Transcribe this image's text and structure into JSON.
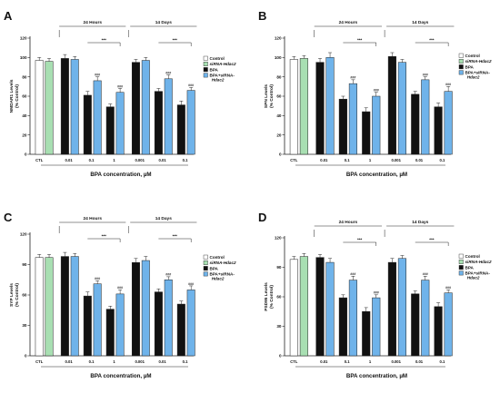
{
  "figure": {
    "style": {
      "colors": {
        "Control": "#ffffff",
        "siRNA-Hdac2": "#a8dfb2",
        "BPA": "#111111",
        "BPA+siRNA-Hdac2": "#6fb3ea"
      },
      "axis_color": "#222222"
    }
  },
  "chart_data": [
    {
      "type": "bar",
      "panel_label": "A",
      "ylabel_lines": [
        "NMDAR1 Levels",
        "(% Control)"
      ],
      "ylim": [
        0,
        120
      ],
      "yticks": [
        "0",
        "20",
        "40",
        "60",
        "80",
        "100",
        "120"
      ],
      "group_headers": [
        "24 Hours",
        "14 Days"
      ],
      "xlabel": "BPA concentration, µM",
      "legend_entries": [
        "Control",
        "siRNA-Hdac2",
        "BPA",
        "BPA+siRNA-Hdac2"
      ],
      "legend_labels": [
        "Control",
        "siRNA-Hdac2",
        "BPA",
        "BPA+siRNA-",
        "Hdac2"
      ],
      "significance": [
        "***",
        "***"
      ],
      "bars": [
        {
          "series": "Control",
          "label": "CTL",
          "value": 97,
          "error": 3,
          "sig": ""
        },
        {
          "series": "siRNA-Hdac2",
          "label": "",
          "value": 96,
          "error": 3,
          "sig": ""
        },
        {
          "series": "BPA",
          "label": "0.01",
          "value": 99,
          "error": 4,
          "sig": ""
        },
        {
          "series": "BPA+siRNA-Hdac2",
          "label": "",
          "value": 98,
          "error": 3,
          "sig": ""
        },
        {
          "series": "BPA",
          "label": "0.1",
          "value": 61,
          "error": 4,
          "sig": ""
        },
        {
          "series": "BPA+siRNA-Hdac2",
          "label": "",
          "value": 76,
          "error": 4,
          "sig": "###"
        },
        {
          "series": "BPA",
          "label": "1",
          "value": 49,
          "error": 3,
          "sig": ""
        },
        {
          "series": "BPA+siRNA-Hdac2",
          "label": "",
          "value": 64,
          "error": 4,
          "sig": "###"
        },
        {
          "series": "BPA",
          "label": "0.001",
          "value": 95,
          "error": 3,
          "sig": ""
        },
        {
          "series": "BPA+siRNA-Hdac2",
          "label": "",
          "value": 97,
          "error": 3,
          "sig": ""
        },
        {
          "series": "BPA",
          "label": "0.01",
          "value": 65,
          "error": 3,
          "sig": ""
        },
        {
          "series": "BPA+siRNA-Hdac2",
          "label": "",
          "value": 78,
          "error": 4,
          "sig": "###"
        },
        {
          "series": "BPA",
          "label": "0.1",
          "value": 51,
          "error": 4,
          "sig": ""
        },
        {
          "series": "BPA+siRNA-Hdac2",
          "label": "",
          "value": 66,
          "error": 3,
          "sig": "###"
        }
      ]
    },
    {
      "type": "bar",
      "panel_label": "B",
      "ylabel_lines": [
        "SPN Levels",
        "(% Control)"
      ],
      "ylim": [
        0,
        120
      ],
      "yticks": [
        "0",
        "20",
        "40",
        "60",
        "80",
        "100",
        "120"
      ],
      "group_headers": [
        "24 Hours",
        "14 Days"
      ],
      "xlabel": "BPA concentration, µM",
      "legend_entries": [
        "Control",
        "siRNA-Hdac2",
        "BPA",
        "BPA+siRNA-Hdac2"
      ],
      "legend_labels": [
        "Control",
        "siRNA-Hdac2",
        "BPA",
        "BPA+siRNA-",
        "Hdac2"
      ],
      "significance": [
        "***",
        "***"
      ],
      "bars": [
        {
          "series": "Control",
          "label": "CTL",
          "value": 98,
          "error": 3,
          "sig": ""
        },
        {
          "series": "siRNA-Hdac2",
          "label": "",
          "value": 99,
          "error": 3,
          "sig": ""
        },
        {
          "series": "BPA",
          "label": "0.01",
          "value": 95,
          "error": 4,
          "sig": ""
        },
        {
          "series": "BPA+siRNA-Hdac2",
          "label": "",
          "value": 100,
          "error": 5,
          "sig": ""
        },
        {
          "series": "BPA",
          "label": "0.1",
          "value": 57,
          "error": 3,
          "sig": ""
        },
        {
          "series": "BPA+siRNA-Hdac2",
          "label": "",
          "value": 73,
          "error": 4,
          "sig": "###"
        },
        {
          "series": "BPA",
          "label": "1",
          "value": 44,
          "error": 4,
          "sig": ""
        },
        {
          "series": "BPA+siRNA-Hdac2",
          "label": "",
          "value": 60,
          "error": 4,
          "sig": "###"
        },
        {
          "series": "BPA",
          "label": "0.001",
          "value": 101,
          "error": 4,
          "sig": ""
        },
        {
          "series": "BPA+siRNA-Hdac2",
          "label": "",
          "value": 95,
          "error": 3,
          "sig": ""
        },
        {
          "series": "BPA",
          "label": "0.01",
          "value": 62,
          "error": 3,
          "sig": ""
        },
        {
          "series": "BPA+siRNA-Hdac2",
          "label": "",
          "value": 77,
          "error": 3,
          "sig": "###"
        },
        {
          "series": "BPA",
          "label": "0.1",
          "value": 49,
          "error": 4,
          "sig": ""
        },
        {
          "series": "BPA+siRNA-Hdac2",
          "label": "",
          "value": 65,
          "error": 5,
          "sig": "###"
        }
      ]
    },
    {
      "type": "bar",
      "panel_label": "C",
      "ylabel_lines": [
        "SYP Levels",
        "(% Control)"
      ],
      "ylim": [
        0,
        120
      ],
      "yticks": [
        "0",
        "30",
        "60",
        "90",
        "120"
      ],
      "group_headers": [
        "24 Hours",
        "14 Days"
      ],
      "xlabel": "BPA concentration, µM",
      "legend_entries": [
        "Control",
        "siRNA-Hdac2",
        "BPA",
        "BPA+siRNA-Hdac2"
      ],
      "legend_labels": [
        "Control",
        "siRNA-Hdac2",
        "BPA",
        "BPA+siRNA-",
        "Hdac2"
      ],
      "significance": [
        "***",
        "***"
      ],
      "bars": [
        {
          "series": "Control",
          "label": "CTL",
          "value": 97,
          "error": 3,
          "sig": ""
        },
        {
          "series": "siRNA-Hdac2",
          "label": "",
          "value": 97,
          "error": 3,
          "sig": ""
        },
        {
          "series": "BPA",
          "label": "0.01",
          "value": 98,
          "error": 4,
          "sig": ""
        },
        {
          "series": "BPA+siRNA-Hdac2",
          "label": "",
          "value": 98,
          "error": 3,
          "sig": ""
        },
        {
          "series": "BPA",
          "label": "0.1",
          "value": 59,
          "error": 4,
          "sig": ""
        },
        {
          "series": "BPA+siRNA-Hdac2",
          "label": "",
          "value": 71,
          "error": 3,
          "sig": "###"
        },
        {
          "series": "BPA",
          "label": "1",
          "value": 46,
          "error": 3,
          "sig": ""
        },
        {
          "series": "BPA+siRNA-Hdac2",
          "label": "",
          "value": 61,
          "error": 4,
          "sig": "###"
        },
        {
          "series": "BPA",
          "label": "0.001",
          "value": 92,
          "error": 4,
          "sig": ""
        },
        {
          "series": "BPA+siRNA-Hdac2",
          "label": "",
          "value": 94,
          "error": 4,
          "sig": ""
        },
        {
          "series": "BPA",
          "label": "0.01",
          "value": 63,
          "error": 3,
          "sig": ""
        },
        {
          "series": "BPA+siRNA-Hdac2",
          "label": "",
          "value": 75,
          "error": 3,
          "sig": "###"
        },
        {
          "series": "BPA",
          "label": "0.1",
          "value": 51,
          "error": 3,
          "sig": ""
        },
        {
          "series": "BPA+siRNA-Hdac2",
          "label": "",
          "value": 65,
          "error": 4,
          "sig": "###"
        }
      ]
    },
    {
      "type": "bar",
      "panel_label": "D",
      "ylabel_lines": [
        "PSD95 Levels",
        "(% Control)"
      ],
      "ylim": [
        0,
        120
      ],
      "yticks": [
        "0",
        "30",
        "60",
        "90",
        "120"
      ],
      "group_headers": [
        "24 Hours",
        "14 Days"
      ],
      "xlabel": "BPA concentration, µM",
      "legend_entries": [
        "Control",
        "siRNA-Hdac2",
        "BPA",
        "BPA+siRNA-Hdac2"
      ],
      "legend_labels": [
        "Control",
        "siRNA-Hdac2",
        "BPA",
        "BPA+siRNA-",
        "Hdac2"
      ],
      "significance": [
        "***",
        "***"
      ],
      "bars": [
        {
          "series": "Control",
          "label": "CTL",
          "value": 98,
          "error": 3,
          "sig": ""
        },
        {
          "series": "siRNA-Hdac2",
          "label": "",
          "value": 101,
          "error": 3,
          "sig": ""
        },
        {
          "series": "BPA",
          "label": "0.01",
          "value": 100,
          "error": 3,
          "sig": ""
        },
        {
          "series": "BPA+siRNA-Hdac2",
          "label": "",
          "value": 95,
          "error": 4,
          "sig": ""
        },
        {
          "series": "BPA",
          "label": "0.1",
          "value": 59,
          "error": 3,
          "sig": ""
        },
        {
          "series": "BPA+siRNA-Hdac2",
          "label": "",
          "value": 77,
          "error": 4,
          "sig": "###"
        },
        {
          "series": "BPA",
          "label": "1",
          "value": 45,
          "error": 4,
          "sig": ""
        },
        {
          "series": "BPA+siRNA-Hdac2",
          "label": "",
          "value": 59,
          "error": 3,
          "sig": "###"
        },
        {
          "series": "BPA",
          "label": "0.001",
          "value": 95,
          "error": 4,
          "sig": ""
        },
        {
          "series": "BPA+siRNA-Hdac2",
          "label": "",
          "value": 99,
          "error": 3,
          "sig": ""
        },
        {
          "series": "BPA",
          "label": "0.01",
          "value": 63,
          "error": 3,
          "sig": ""
        },
        {
          "series": "BPA+siRNA-Hdac2",
          "label": "",
          "value": 77,
          "error": 4,
          "sig": "###"
        },
        {
          "series": "BPA",
          "label": "0.1",
          "value": 50,
          "error": 4,
          "sig": ""
        },
        {
          "series": "BPA+siRNA-Hdac2",
          "label": "",
          "value": 64,
          "error": 3,
          "sig": "###"
        }
      ]
    }
  ]
}
